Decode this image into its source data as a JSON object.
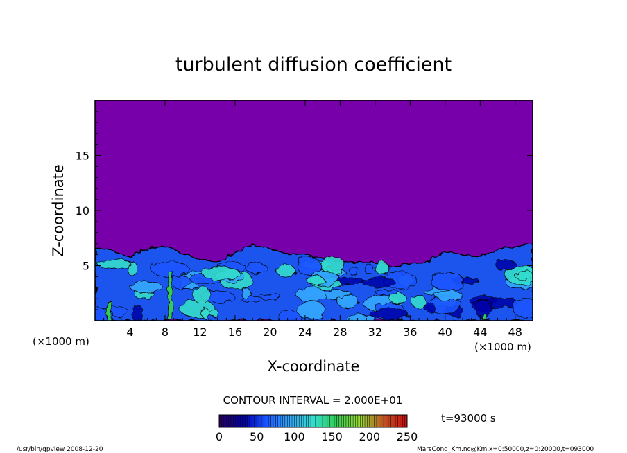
{
  "chart_data": {
    "type": "heatmap",
    "title": "turbulent diffusion coefficient",
    "xlabel": "X-coordinate",
    "ylabel": "Z-coordinate",
    "x_unit": "(×1000 m)",
    "z_unit": "(×1000 m)",
    "xlim": [
      0,
      50
    ],
    "ylim": [
      0,
      20
    ],
    "x_ticks": [
      4,
      8,
      12,
      16,
      20,
      24,
      28,
      32,
      36,
      40,
      44,
      48
    ],
    "y_ticks": [
      5,
      10,
      15
    ],
    "contour_interval": "CONTOUR INTERVAL = 2.000E+01",
    "colorbar": {
      "min": 0,
      "max": 250,
      "ticks": [
        0,
        50,
        100,
        150,
        200,
        250
      ],
      "colors": [
        "#2b0066",
        "#0000aa",
        "#1a55ff",
        "#33aaff",
        "#33ddcc",
        "#33cc55",
        "#99dd33",
        "#bb5522",
        "#cc1111"
      ]
    },
    "background_color": "#7700aa",
    "boundary_layer_top": [
      [
        0,
        6.6
      ],
      [
        2,
        6.3
      ],
      [
        4,
        5.8
      ],
      [
        6,
        6.6
      ],
      [
        8,
        6.8
      ],
      [
        10,
        6.1
      ],
      [
        12,
        5.6
      ],
      [
        14,
        5.3
      ],
      [
        16,
        6.2
      ],
      [
        18,
        6.9
      ],
      [
        20,
        6.5
      ],
      [
        22,
        6.1
      ],
      [
        24,
        6.0
      ],
      [
        26,
        5.7
      ],
      [
        28,
        5.4
      ],
      [
        30,
        5.3
      ],
      [
        32,
        5.3
      ],
      [
        34,
        5.0
      ],
      [
        36,
        5.1
      ],
      [
        38,
        5.3
      ],
      [
        40,
        6.3
      ],
      [
        42,
        6.0
      ],
      [
        44,
        5.8
      ],
      [
        46,
        6.5
      ],
      [
        48,
        6.7
      ],
      [
        50,
        7.0
      ]
    ],
    "time_label": "t=93000 s",
    "footer_left": "/usr/bin/gpview   2008-12-20",
    "footer_right": "MarsCond_Km.nc@Km,x=0:50000,z=0:20000,t=093000"
  }
}
